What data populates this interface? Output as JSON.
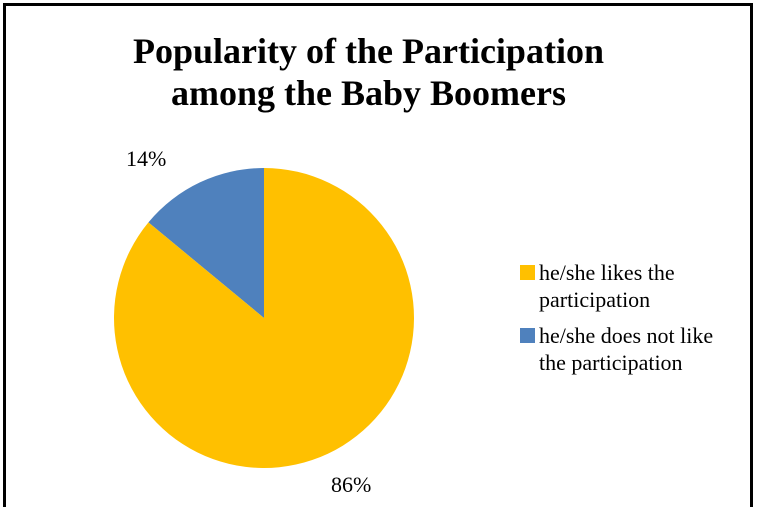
{
  "chart_data": {
    "type": "pie",
    "title_lines": [
      "Popularity of the Participation",
      "among the Baby Boomers"
    ],
    "categories": [
      "he/she likes the participation",
      "he/she does not like the participation"
    ],
    "values": [
      86,
      14
    ],
    "labels": [
      "86%",
      "14%"
    ],
    "colors": [
      "#FFC000",
      "#4F81BD"
    ],
    "legend": {
      "position": "right",
      "lines": [
        [
          "he/she likes the",
          "participation"
        ],
        [
          "he/she does not like",
          "the participation"
        ]
      ]
    }
  }
}
